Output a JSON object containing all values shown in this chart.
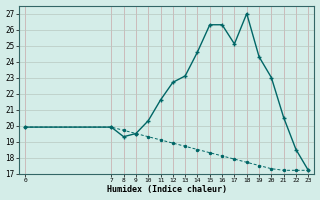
{
  "xlabel": "Humidex (Indice chaleur)",
  "ylabel": "",
  "bg_color": "#d4ede8",
  "grid_color_v": "#c8a8a8",
  "grid_color_h": "#b8c8c0",
  "line_color": "#006666",
  "x_main": [
    0,
    7,
    8,
    9,
    10,
    11,
    12,
    13,
    14,
    15,
    16,
    17,
    18,
    19,
    20,
    21,
    22,
    23
  ],
  "y_main": [
    19.9,
    19.9,
    19.3,
    19.5,
    20.3,
    21.6,
    22.7,
    23.1,
    24.6,
    26.3,
    26.3,
    25.1,
    27.0,
    24.3,
    23.0,
    20.5,
    18.5,
    17.2
  ],
  "x_ref": [
    0,
    7,
    8,
    9,
    10,
    11,
    12,
    13,
    14,
    15,
    16,
    17,
    18,
    19,
    20,
    21,
    22,
    23
  ],
  "y_ref": [
    19.9,
    19.9,
    19.7,
    19.5,
    19.3,
    19.1,
    18.9,
    18.7,
    18.5,
    18.3,
    18.1,
    17.9,
    17.7,
    17.5,
    17.3,
    17.2,
    17.2,
    17.2
  ],
  "xlim": [
    -0.5,
    23.5
  ],
  "ylim": [
    17,
    27.5
  ],
  "yticks": [
    17,
    18,
    19,
    20,
    21,
    22,
    23,
    24,
    25,
    26,
    27
  ],
  "xticks": [
    0,
    7,
    8,
    9,
    10,
    11,
    12,
    13,
    14,
    15,
    16,
    17,
    18,
    19,
    20,
    21,
    22,
    23
  ],
  "xtick_labels": [
    "0",
    "7",
    "8",
    "9",
    "10",
    "11",
    "12",
    "13",
    "14",
    "15",
    "16",
    "17",
    "18",
    "19",
    "20",
    "21",
    "22",
    "23"
  ]
}
